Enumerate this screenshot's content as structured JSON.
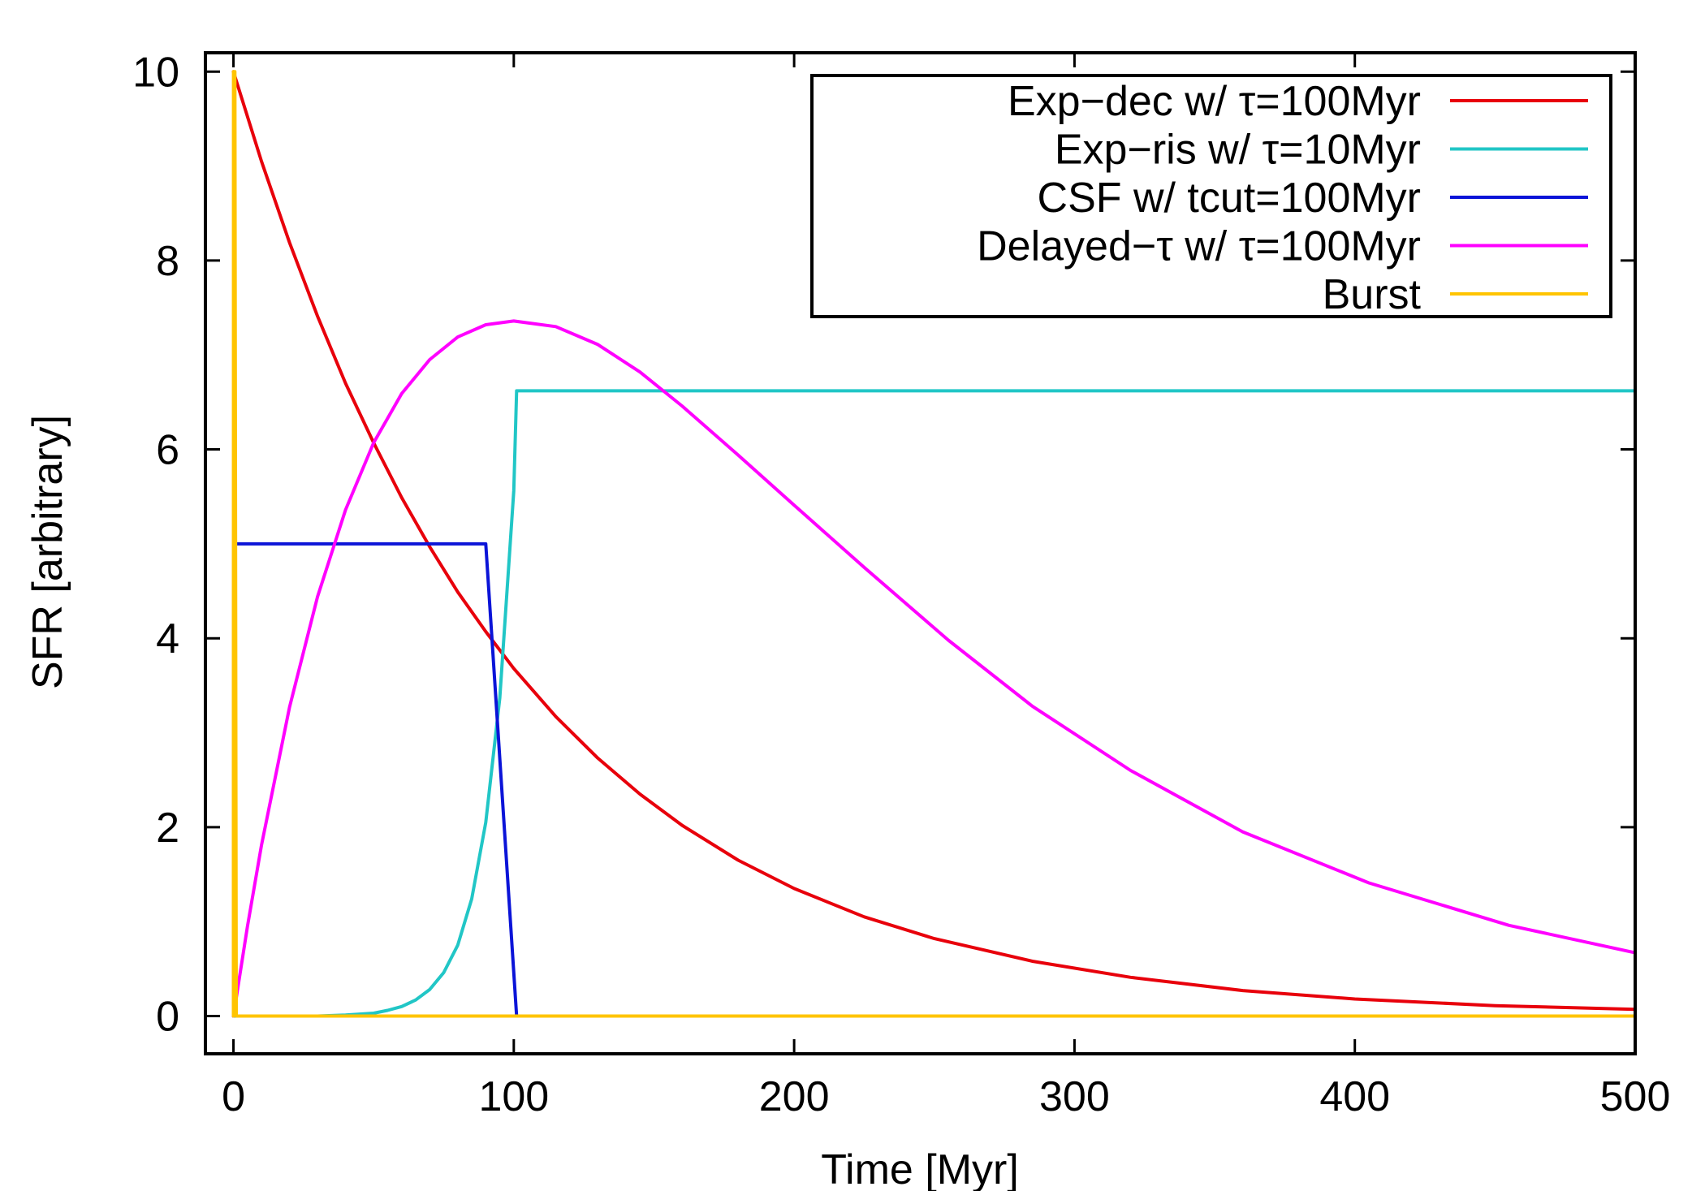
{
  "chart_data": {
    "type": "line",
    "xlabel": "Time [Myr]",
    "ylabel": "SFR [arbitrary]",
    "xlim": [
      -10,
      500
    ],
    "ylim": [
      -0.4,
      10.2
    ],
    "xticks": [
      0,
      100,
      200,
      300,
      400,
      500
    ],
    "yticks": [
      0,
      2,
      4,
      6,
      8,
      10
    ],
    "legend_position": "top-right",
    "grid": false,
    "series": [
      {
        "name": "Exp−dec w/ τ=100Myr",
        "color": "#e8000b",
        "x": [
          0,
          10,
          20,
          30,
          40,
          50,
          60,
          70,
          80,
          90,
          100,
          115,
          130,
          145,
          160,
          180,
          200,
          225,
          250,
          285,
          320,
          360,
          400,
          450,
          500
        ],
        "y": [
          10,
          9.05,
          8.19,
          7.41,
          6.7,
          6.07,
          5.49,
          4.97,
          4.49,
          4.07,
          3.68,
          3.17,
          2.73,
          2.35,
          2.02,
          1.65,
          1.35,
          1.05,
          0.82,
          0.58,
          0.41,
          0.27,
          0.18,
          0.11,
          0.07
        ]
      },
      {
        "name": "Exp−ris w/ τ=10Myr",
        "color": "#21c6c6",
        "x": [
          0,
          30,
          40,
          50,
          55,
          60,
          65,
          70,
          75,
          80,
          85,
          90,
          95,
          100,
          101,
          150,
          200,
          300,
          400,
          500
        ],
        "y": [
          0,
          0,
          0.01,
          0.03,
          0.06,
          0.1,
          0.17,
          0.28,
          0.46,
          0.75,
          1.24,
          2.05,
          3.37,
          5.56,
          6.62,
          6.62,
          6.62,
          6.62,
          6.62,
          6.62
        ]
      },
      {
        "name": "CSF w/ tcut=100Myr",
        "color": "#0b14d8",
        "x": [
          0,
          0.1,
          90,
          101,
          200,
          300,
          400,
          500
        ],
        "y": [
          0,
          5,
          5,
          0,
          0,
          0,
          0,
          0
        ]
      },
      {
        "name": "Delayed−τ w/ τ=100Myr",
        "color": "#ff00ff",
        "x": [
          0,
          5,
          10,
          20,
          30,
          40,
          50,
          60,
          70,
          80,
          90,
          100,
          115,
          130,
          145,
          160,
          180,
          200,
          225,
          255,
          285,
          320,
          360,
          405,
          455,
          500
        ],
        "y": [
          0,
          0.95,
          1.81,
          3.27,
          4.44,
          5.36,
          6.07,
          6.59,
          6.95,
          7.19,
          7.32,
          7.36,
          7.3,
          7.11,
          6.82,
          6.46,
          5.94,
          5.41,
          4.75,
          3.98,
          3.28,
          2.6,
          1.95,
          1.41,
          0.96,
          0.67
        ]
      },
      {
        "name": "Burst",
        "color": "#ffc400",
        "x": [
          0,
          0.01,
          0.5,
          1,
          500
        ],
        "y": [
          0,
          10,
          10,
          0,
          0
        ]
      }
    ]
  }
}
